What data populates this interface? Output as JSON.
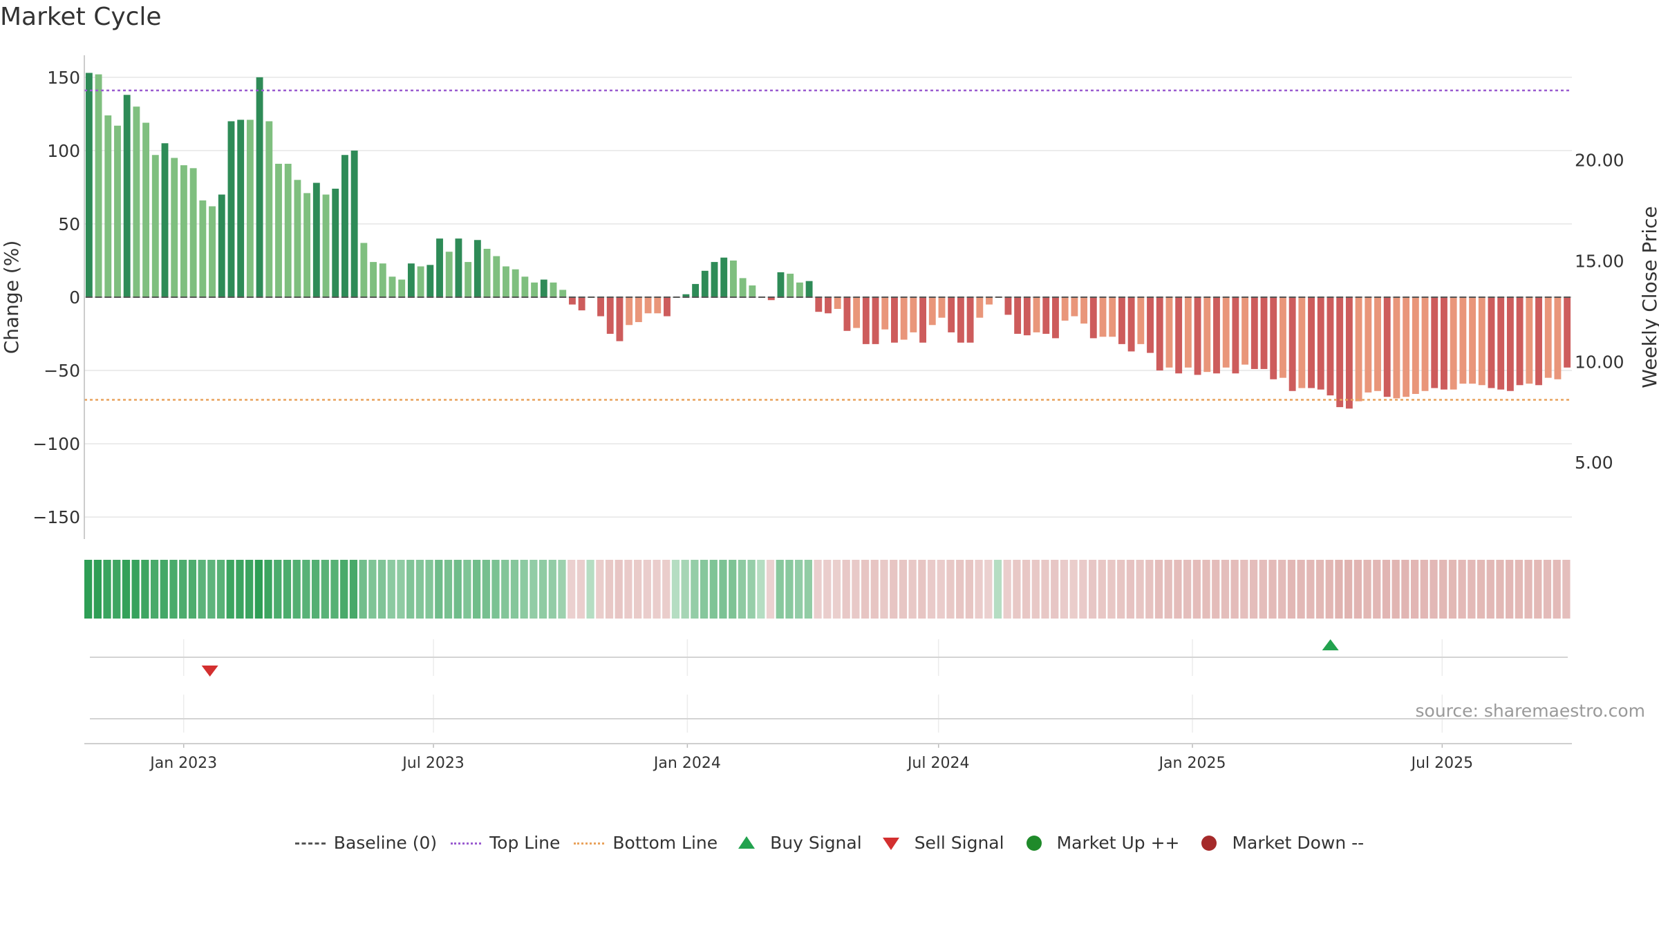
{
  "chart_data": {
    "type": "bar",
    "title": "Market Cycle",
    "ylabel": "Change (%)",
    "y2label": "Weekly Close Price",
    "ylim": [
      -165,
      165
    ],
    "yticks": [
      150,
      100,
      50,
      0,
      -50,
      -100,
      -150
    ],
    "ytick_labels": [
      "150",
      "100",
      "50",
      "0",
      "−50",
      "−100",
      "−150"
    ],
    "y2ticks": [
      20,
      15,
      10,
      5
    ],
    "y2tick_labels": [
      "20.00",
      "15.00",
      "10.00",
      "5.00"
    ],
    "y2lim": [
      1.2,
      25.2
    ],
    "top_line": 141,
    "bottom_line": -70,
    "baseline": 0,
    "date_range": [
      "2022-10-21",
      "2025-10-03"
    ],
    "xticks": [
      "2023-01-01",
      "2023-07-01",
      "2024-01-01",
      "2024-07-01",
      "2025-01-01",
      "2025-07-01"
    ],
    "xtick_labels": [
      "Jan 2023",
      "Jul 2023",
      "Jan 2024",
      "Jul 2024",
      "Jan 2025",
      "Jul 2025"
    ],
    "grid": true,
    "bar_colors": {
      "strong_up": "#2e8b57",
      "up": "#7fbf7f",
      "strong_down": "#cd5c5c",
      "down": "#e9967a"
    },
    "series": [
      {
        "values": [
          153,
          152,
          124,
          117,
          138,
          130,
          119,
          97,
          105,
          95,
          90,
          88,
          66,
          62,
          70,
          120,
          121,
          121,
          150,
          120,
          91,
          91,
          80,
          71,
          78,
          70,
          74,
          97,
          100,
          37,
          24,
          23,
          14,
          12,
          23,
          21,
          22,
          40,
          31,
          40,
          24,
          39,
          33,
          28,
          21,
          19,
          14,
          10,
          12,
          10,
          5,
          -5,
          -9,
          0,
          -13,
          -25,
          -30,
          -19,
          -17,
          -11,
          -11,
          -13,
          0,
          2,
          9,
          18,
          24,
          27,
          25,
          13,
          8,
          0,
          -2,
          17,
          16,
          10,
          11,
          -10,
          -11,
          -8,
          -23,
          -21,
          -32,
          -32,
          -22,
          -31,
          -29,
          -24,
          -31,
          -19,
          -14,
          -24,
          -31,
          -31,
          -14,
          -5,
          0,
          -12,
          -25,
          -26,
          -24,
          -25,
          -28,
          -16,
          -13,
          -18,
          -28,
          -27,
          -27,
          -32,
          -37,
          -32,
          -38,
          -50,
          -48,
          -52,
          -48,
          -53,
          -51,
          -52,
          -48,
          -52,
          -46,
          -49,
          -49,
          -56,
          -55,
          -64,
          -62,
          -62,
          -63,
          -67,
          -75,
          -76,
          -71,
          -65,
          -64,
          -68,
          -69,
          -68,
          -66,
          -64,
          -62,
          -63,
          -63,
          -59,
          -59,
          -60,
          -62,
          -63,
          -64,
          -60,
          -59,
          -60,
          -55,
          -56,
          -48
        ],
        "colors": [
          "strong_up",
          "up",
          "up",
          "up",
          "strong_up",
          "up",
          "up",
          "up",
          "strong_up",
          "up",
          "up",
          "up",
          "up",
          "up",
          "strong_up",
          "strong_up",
          "strong_up",
          "up",
          "strong_up",
          "up",
          "up",
          "up",
          "up",
          "up",
          "strong_up",
          "up",
          "strong_up",
          "strong_up",
          "strong_up",
          "up",
          "up",
          "up",
          "up",
          "up",
          "strong_up",
          "up",
          "strong_up",
          "strong_up",
          "up",
          "strong_up",
          "up",
          "strong_up",
          "up",
          "up",
          "up",
          "up",
          "up",
          "up",
          "strong_up",
          "up",
          "up",
          "strong_down",
          "strong_down",
          "strong_down",
          "strong_down",
          "strong_down",
          "strong_down",
          "down",
          "down",
          "down",
          "down",
          "strong_down",
          "strong_up",
          "strong_up",
          "strong_up",
          "strong_up",
          "strong_up",
          "strong_up",
          "up",
          "up",
          "up",
          "up",
          "strong_down",
          "strong_up",
          "up",
          "up",
          "strong_up",
          "strong_down",
          "strong_down",
          "down",
          "strong_down",
          "down",
          "strong_down",
          "strong_down",
          "down",
          "strong_down",
          "down",
          "down",
          "strong_down",
          "down",
          "down",
          "strong_down",
          "strong_down",
          "strong_down",
          "down",
          "down",
          "down",
          "strong_down",
          "strong_down",
          "strong_down",
          "down",
          "strong_down",
          "strong_down",
          "down",
          "down",
          "down",
          "strong_down",
          "down",
          "down",
          "strong_down",
          "strong_down",
          "down",
          "strong_down",
          "strong_down",
          "down",
          "strong_down",
          "down",
          "strong_down",
          "down",
          "strong_down",
          "down",
          "strong_down",
          "down",
          "strong_down",
          "strong_down",
          "strong_down",
          "down",
          "strong_down",
          "down",
          "strong_down",
          "strong_down",
          "strong_down",
          "strong_down",
          "strong_down",
          "down",
          "down",
          "down",
          "strong_down",
          "down",
          "down",
          "down",
          "down",
          "strong_down",
          "strong_down",
          "down",
          "down",
          "down",
          "down",
          "strong_down",
          "strong_down",
          "strong_down",
          "strong_down",
          "down",
          "strong_down",
          "down",
          "down",
          "strong_down",
          "strong_down",
          "strong_down",
          "down"
        ]
      }
    ],
    "signals": [
      {
        "type": "sell",
        "date": "2023-01-20"
      },
      {
        "type": "buy",
        "date": "2025-04-11"
      }
    ],
    "legend": [
      "Baseline (0)",
      "Top Line",
      "Bottom Line",
      "Buy Signal",
      "Sell Signal",
      "Market Up ++",
      "Market Down --"
    ],
    "legend_position": "bottom-center",
    "colors": {
      "top_line": "#9a5cd0",
      "bottom_line": "#e9a25c",
      "baseline": "#555555",
      "buy": "#22a24e",
      "sell": "#d32f2f",
      "market_up": "#1f8a2a",
      "market_down": "#a52a2a"
    }
  },
  "legend": {
    "baseline_label": "Baseline (0)",
    "top_line_label": "Top Line",
    "bottom_line_label": "Bottom Line",
    "buy_label": "Buy Signal",
    "sell_label": "Sell Signal",
    "market_up_label": "Market Up ++",
    "market_down_label": "Market Down --"
  },
  "source": "source: sharemaestro.com"
}
